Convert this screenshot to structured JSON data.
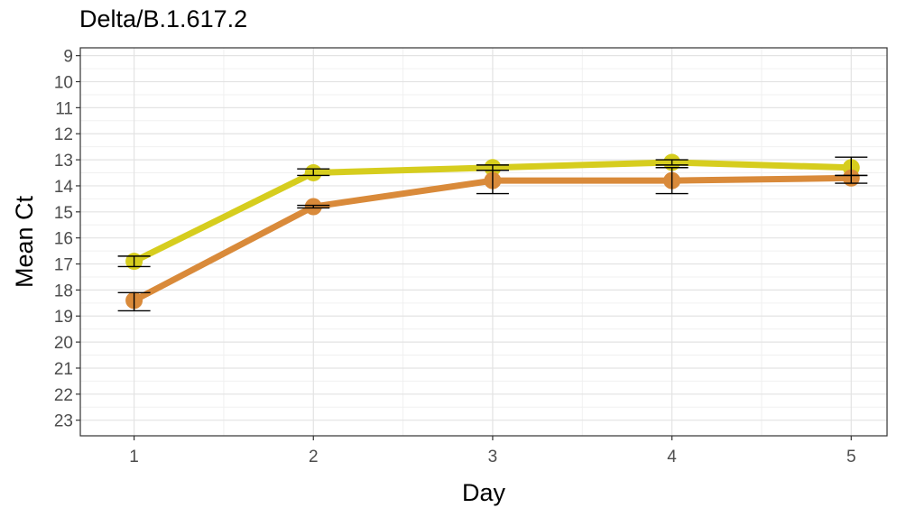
{
  "chart_data": {
    "type": "line",
    "title": "Delta/B.1.617.2",
    "xlabel": "Day",
    "ylabel": "Mean Ct",
    "x": [
      1,
      2,
      3,
      4,
      5
    ],
    "x_ticks": [
      "1",
      "2",
      "3",
      "4",
      "5"
    ],
    "y_ticks": [
      "9",
      "10",
      "11",
      "12",
      "13",
      "14",
      "15",
      "16",
      "17",
      "18",
      "19",
      "20",
      "21",
      "22",
      "23"
    ],
    "ylim": [
      23.6,
      8.7
    ],
    "y_reversed": true,
    "grid": true,
    "series": [
      {
        "color": "#d6cd1e",
        "values": [
          16.9,
          13.5,
          13.3,
          13.1,
          13.3
        ],
        "error_low": [
          17.1,
          13.6,
          13.4,
          13.2,
          13.6
        ],
        "error_high": [
          16.7,
          13.35,
          13.2,
          13.0,
          12.9
        ]
      },
      {
        "color": "#d98a3a",
        "values": [
          18.4,
          14.8,
          13.8,
          13.8,
          13.7
        ],
        "error_low": [
          18.8,
          14.85,
          14.3,
          14.3,
          13.9
        ],
        "error_high": [
          18.1,
          14.75,
          13.4,
          13.3,
          13.6
        ]
      }
    ]
  }
}
